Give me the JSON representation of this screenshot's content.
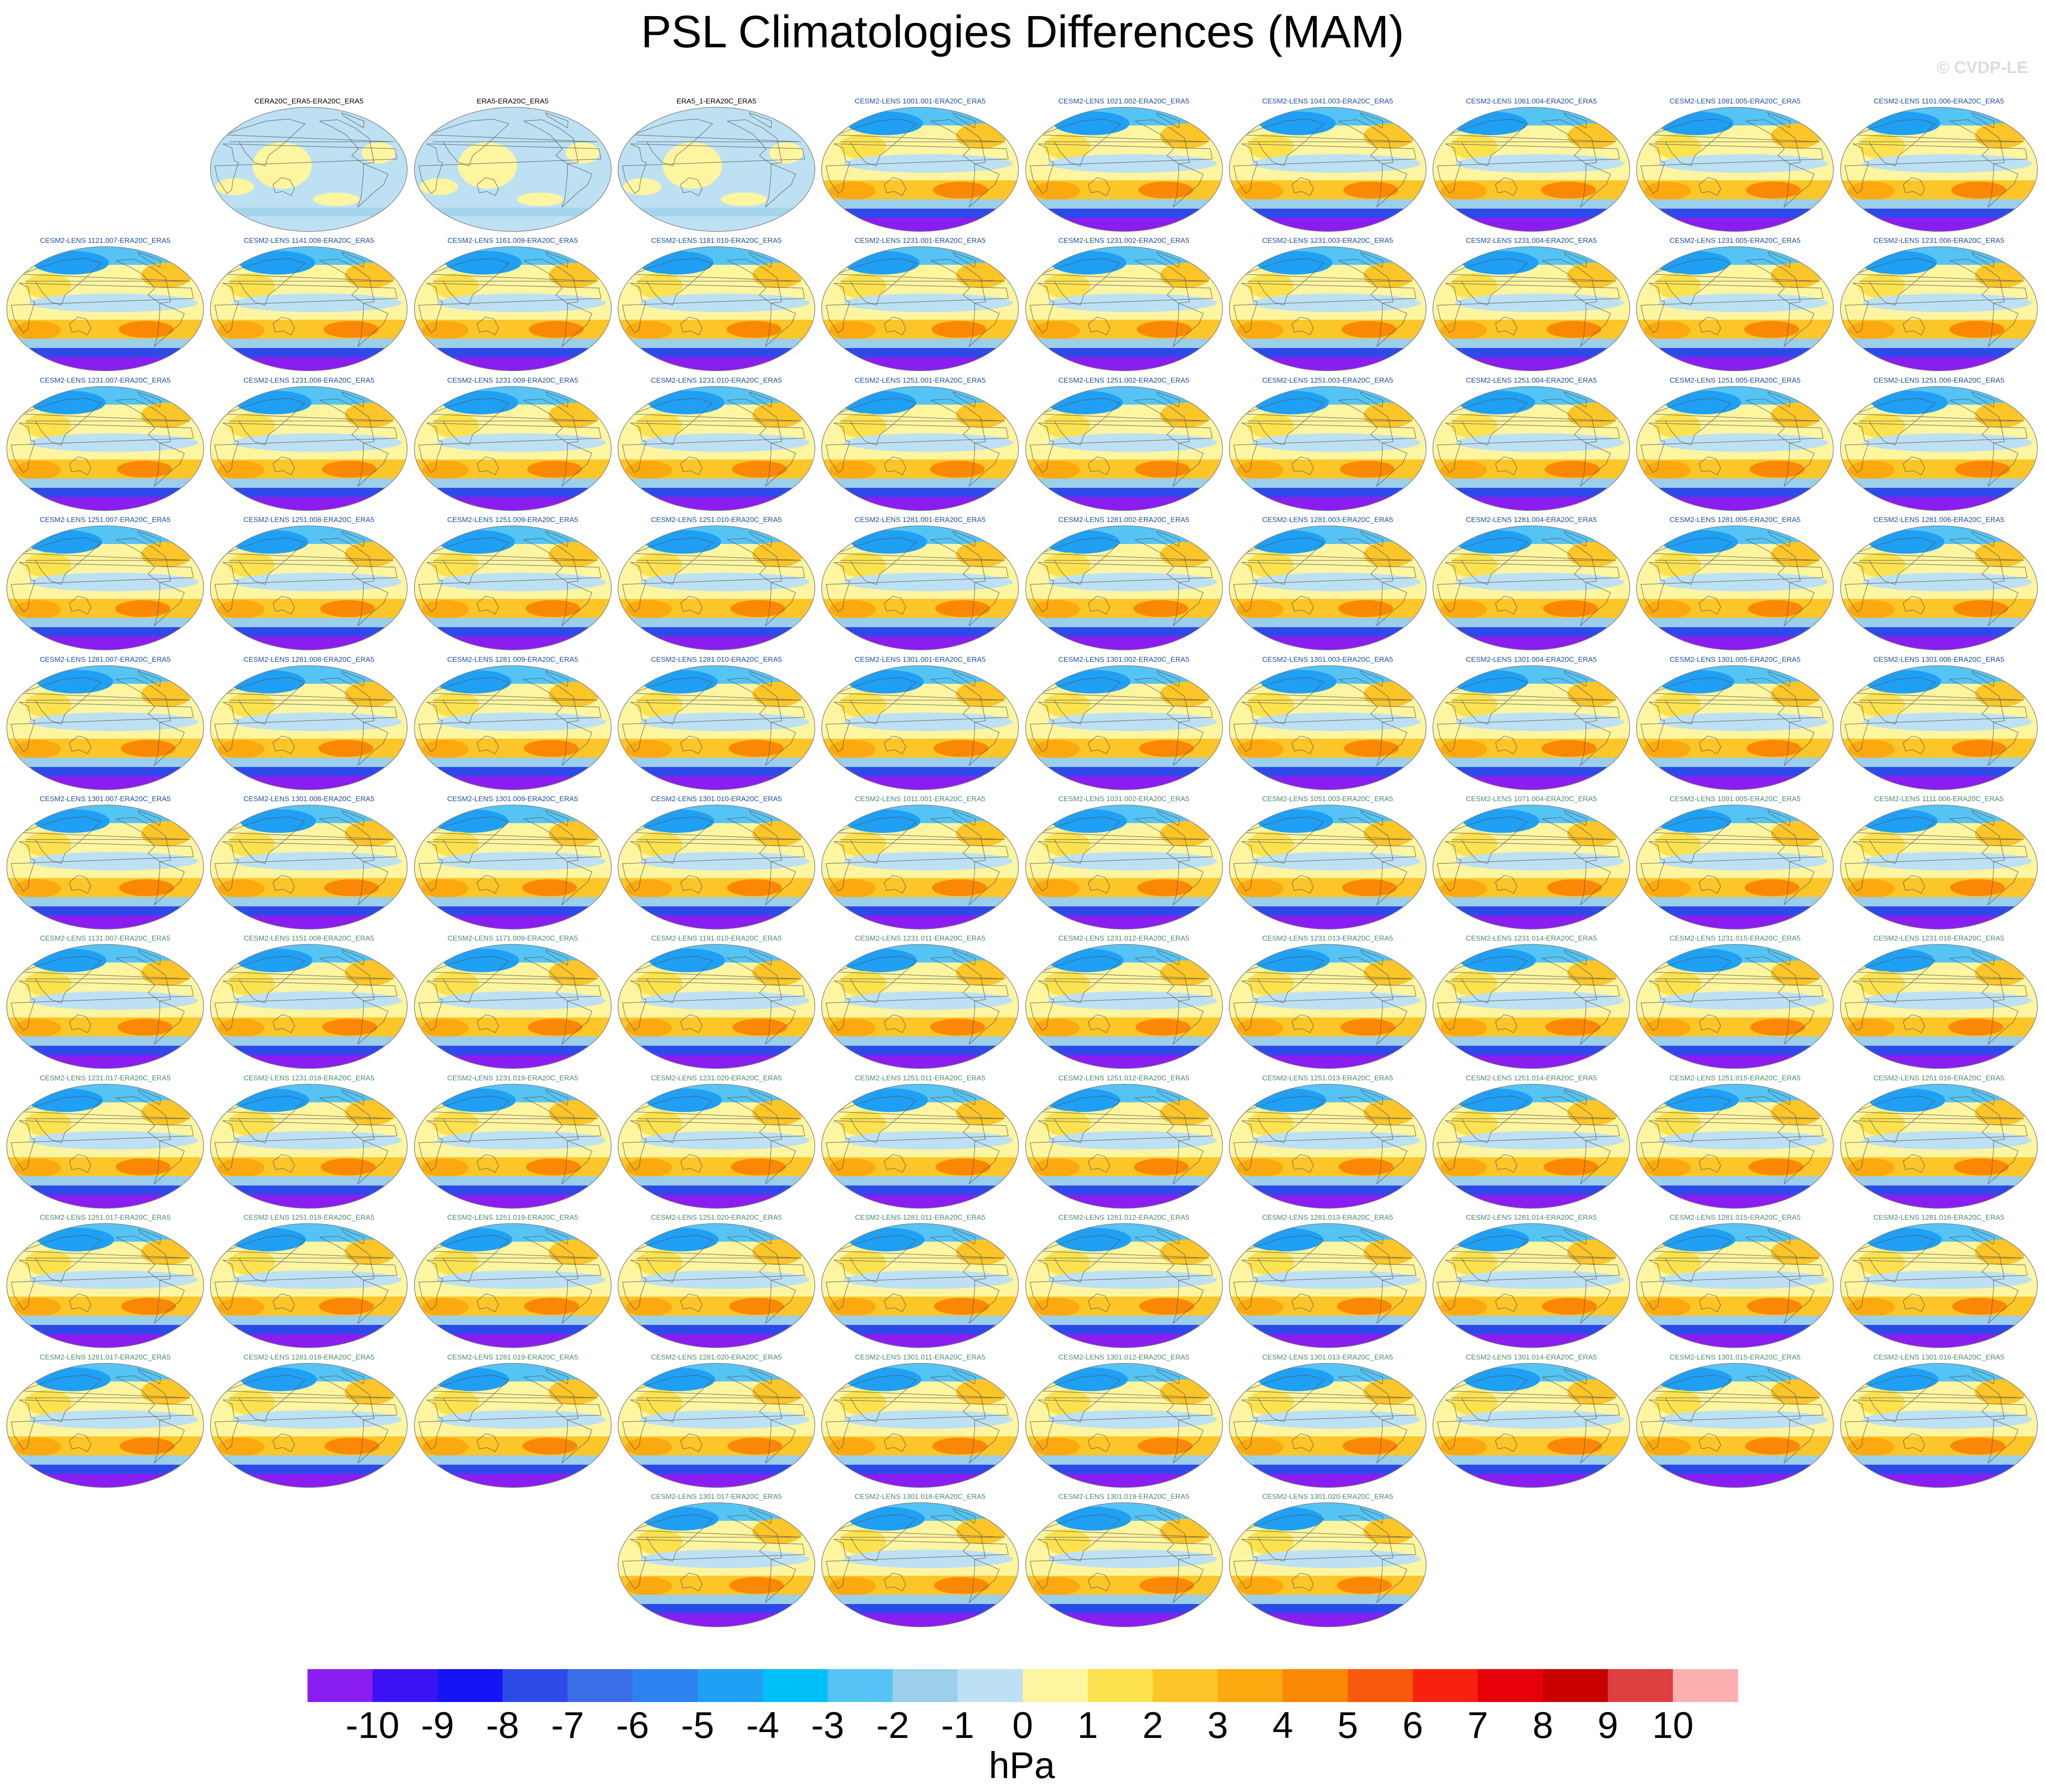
{
  "title": "PSL Climatologies Differences (MAM)",
  "watermark": "© CVDP-LE",
  "chart_data": {
    "type": "map-panel-grid",
    "projection": "Robinson (global, Pacific-centered)",
    "variable": "PSL",
    "season": "MAM",
    "units": "hPa",
    "colorbar": {
      "units_label": "hPa",
      "levels": [
        -10,
        -9,
        -8,
        -7,
        -6,
        -5,
        -4,
        -3,
        -2,
        -1,
        0,
        1,
        2,
        3,
        4,
        5,
        6,
        7,
        8,
        9,
        10
      ],
      "level_labels": [
        "-10",
        "-9",
        "-8",
        "-7",
        "-6",
        "-5",
        "-4",
        "-3",
        "-2",
        "-1",
        "0",
        "1",
        "2",
        "3",
        "4",
        "5",
        "6",
        "7",
        "8",
        "9",
        "10"
      ],
      "colors": [
        "#8a1ef0",
        "#3c12f5",
        "#1414f5",
        "#2d4ae8",
        "#3a6ee6",
        "#2d82f0",
        "#1fa0f5",
        "#00c0f7",
        "#55c4f4",
        "#9bcfea",
        "#bde1f3",
        "#fdf5a0",
        "#fde24f",
        "#fcc528",
        "#fba90f",
        "#fb8805",
        "#f85a0c",
        "#f82010",
        "#e6000a",
        "#c80000",
        "#dc4040",
        "#fcb0b0"
      ]
    },
    "panels": [
      {
        "title": "CERA20C_ERA5-ERA20C_ERA5",
        "style": "obs",
        "title_color": "#000000"
      },
      {
        "title": "ERA5-ERA20C_ERA5",
        "style": "obs",
        "title_color": "#000000"
      },
      {
        "title": "ERA5_1-ERA20C_ERA5",
        "style": "obs",
        "title_color": "#000000"
      },
      {
        "title": "CESM2-LENS 1001.001-ERA20C_ERA5",
        "style": "model",
        "title_color": "#1a4fa0"
      },
      {
        "title": "CESM2-LENS 1021.002-ERA20C_ERA5",
        "style": "model",
        "title_color": "#1a4fa0"
      },
      {
        "title": "CESM2-LENS 1041.003-ERA20C_ERA5",
        "style": "model",
        "title_color": "#1a4fa0"
      },
      {
        "title": "CESM2-LENS 1061.004-ERA20C_ERA5",
        "style": "model",
        "title_color": "#1a4fa0"
      },
      {
        "title": "CESM2-LENS 1081.005-ERA20C_ERA5",
        "style": "model",
        "title_color": "#1a4fa0"
      },
      {
        "title": "CESM2-LENS 1101.006-ERA20C_ERA5",
        "style": "model",
        "title_color": "#1a4fa0"
      },
      {
        "title": "CESM2-LENS 1121.007-ERA20C_ERA5",
        "style": "model",
        "title_color": "#1a4fa0"
      },
      {
        "title": "CESM2-LENS 1141.008-ERA20C_ERA5",
        "style": "model",
        "title_color": "#1a4fa0"
      },
      {
        "title": "CESM2-LENS 1161.009-ERA20C_ERA5",
        "style": "model",
        "title_color": "#1a4fa0"
      },
      {
        "title": "CESM2-LENS 1181.010-ERA20C_ERA5",
        "style": "model",
        "title_color": "#1a4fa0"
      },
      {
        "title": "CESM2-LENS 1231.001-ERA20C_ERA5",
        "style": "model",
        "title_color": "#1a4fa0"
      },
      {
        "title": "CESM2-LENS 1231.002-ERA20C_ERA5",
        "style": "model",
        "title_color": "#1a4fa0"
      },
      {
        "title": "CESM2-LENS 1231.003-ERA20C_ERA5",
        "style": "model",
        "title_color": "#1a4fa0"
      },
      {
        "title": "CESM2-LENS 1231.004-ERA20C_ERA5",
        "style": "model",
        "title_color": "#1a4fa0"
      },
      {
        "title": "CESM2-LENS 1231.005-ERA20C_ERA5",
        "style": "model",
        "title_color": "#1a4fa0"
      },
      {
        "title": "CESM2-LENS 1231.006-ERA20C_ERA5",
        "style": "model",
        "title_color": "#1a4fa0"
      },
      {
        "title": "CESM2-LENS 1231.007-ERA20C_ERA5",
        "style": "model",
        "title_color": "#1a4fa0"
      },
      {
        "title": "CESM2-LENS 1231.008-ERA20C_ERA5",
        "style": "model",
        "title_color": "#1a4fa0"
      },
      {
        "title": "CESM2-LENS 1231.009-ERA20C_ERA5",
        "style": "model",
        "title_color": "#1a4fa0"
      },
      {
        "title": "CESM2-LENS 1231.010-ERA20C_ERA5",
        "style": "model",
        "title_color": "#1a4fa0"
      },
      {
        "title": "CESM2-LENS 1251.001-ERA20C_ERA5",
        "style": "model",
        "title_color": "#1a4fa0"
      },
      {
        "title": "CESM2-LENS 1251.002-ERA20C_ERA5",
        "style": "model",
        "title_color": "#1a4fa0"
      },
      {
        "title": "CESM2-LENS 1251.003-ERA20C_ERA5",
        "style": "model",
        "title_color": "#1a4fa0"
      },
      {
        "title": "CESM2-LENS 1251.004-ERA20C_ERA5",
        "style": "model",
        "title_color": "#1a4fa0"
      },
      {
        "title": "CESM2-LENS 1251.005-ERA20C_ERA5",
        "style": "model",
        "title_color": "#1a4fa0"
      },
      {
        "title": "CESM2-LENS 1251.006-ERA20C_ERA5",
        "style": "model",
        "title_color": "#1a4fa0"
      },
      {
        "title": "CESM2-LENS 1251.007-ERA20C_ERA5",
        "style": "model",
        "title_color": "#1a4fa0"
      },
      {
        "title": "CESM2-LENS 1251.008-ERA20C_ERA5",
        "style": "model",
        "title_color": "#1a4fa0"
      },
      {
        "title": "CESM2-LENS 1251.009-ERA20C_ERA5",
        "style": "model",
        "title_color": "#1a4fa0"
      },
      {
        "title": "CESM2-LENS 1251.010-ERA20C_ERA5",
        "style": "model",
        "title_color": "#1a4fa0"
      },
      {
        "title": "CESM2-LENS 1281.001-ERA20C_ERA5",
        "style": "model",
        "title_color": "#1a4fa0"
      },
      {
        "title": "CESM2-LENS 1281.002-ERA20C_ERA5",
        "style": "model",
        "title_color": "#1a4fa0"
      },
      {
        "title": "CESM2-LENS 1281.003-ERA20C_ERA5",
        "style": "model",
        "title_color": "#1a4fa0"
      },
      {
        "title": "CESM2-LENS 1281.004-ERA20C_ERA5",
        "style": "model",
        "title_color": "#1a4fa0"
      },
      {
        "title": "CESM2-LENS 1281.005-ERA20C_ERA5",
        "style": "model",
        "title_color": "#1a4fa0"
      },
      {
        "title": "CESM2-LENS 1281.006-ERA20C_ERA5",
        "style": "model",
        "title_color": "#1a4fa0"
      },
      {
        "title": "CESM2-LENS 1281.007-ERA20C_ERA5",
        "style": "model",
        "title_color": "#1a4fa0"
      },
      {
        "title": "CESM2-LENS 1281.008-ERA20C_ERA5",
        "style": "model",
        "title_color": "#1a4fa0"
      },
      {
        "title": "CESM2-LENS 1281.009-ERA20C_ERA5",
        "style": "model",
        "title_color": "#1a4fa0"
      },
      {
        "title": "CESM2-LENS 1281.010-ERA20C_ERA5",
        "style": "model",
        "title_color": "#1a4fa0"
      },
      {
        "title": "CESM2-LENS 1301.001-ERA20C_ERA5",
        "style": "model",
        "title_color": "#1a4fa0"
      },
      {
        "title": "CESM2-LENS 1301.002-ERA20C_ERA5",
        "style": "model",
        "title_color": "#1a4fa0"
      },
      {
        "title": "CESM2-LENS 1301.003-ERA20C_ERA5",
        "style": "model",
        "title_color": "#1a4fa0"
      },
      {
        "title": "CESM2-LENS 1301.004-ERA20C_ERA5",
        "style": "model",
        "title_color": "#1a4fa0"
      },
      {
        "title": "CESM2-LENS 1301.005-ERA20C_ERA5",
        "style": "model",
        "title_color": "#1a4fa0"
      },
      {
        "title": "CESM2-LENS 1301.006-ERA20C_ERA5",
        "style": "model",
        "title_color": "#1a4fa0"
      },
      {
        "title": "CESM2-LENS 1301.007-ERA20C_ERA5",
        "style": "model",
        "title_color": "#1a4fa0"
      },
      {
        "title": "CESM2-LENS 1301.008-ERA20C_ERA5",
        "style": "model",
        "title_color": "#1a4fa0"
      },
      {
        "title": "CESM2-LENS 1301.009-ERA20C_ERA5",
        "style": "model",
        "title_color": "#1a4fa0"
      },
      {
        "title": "CESM2-LENS 1301.010-ERA20C_ERA5",
        "style": "model",
        "title_color": "#1a4fa0"
      },
      {
        "title": "CESM2-LENS 1011.001-ERA20C_ERA5",
        "style": "model",
        "title_color": "#4a8a6e"
      },
      {
        "title": "CESM2-LENS 1031.002-ERA20C_ERA5",
        "style": "model",
        "title_color": "#4a8a6e"
      },
      {
        "title": "CESM2-LENS 1051.003-ERA20C_ERA5",
        "style": "model",
        "title_color": "#4a8a6e"
      },
      {
        "title": "CESM2-LENS 1071.004-ERA20C_ERA5",
        "style": "model",
        "title_color": "#4a8a6e"
      },
      {
        "title": "CESM2-LENS 1091.005-ERA20C_ERA5",
        "style": "model",
        "title_color": "#4a8a6e"
      },
      {
        "title": "CESM2-LENS 1111.006-ERA20C_ERA5",
        "style": "model",
        "title_color": "#4a8a6e"
      },
      {
        "title": "CESM2-LENS 1131.007-ERA20C_ERA5",
        "style": "model",
        "title_color": "#4a8a6e"
      },
      {
        "title": "CESM2-LENS 1151.008-ERA20C_ERA5",
        "style": "model",
        "title_color": "#4a8a6e"
      },
      {
        "title": "CESM2-LENS 1171.009-ERA20C_ERA5",
        "style": "model",
        "title_color": "#4a8a6e"
      },
      {
        "title": "CESM2-LENS 1191.010-ERA20C_ERA5",
        "style": "model",
        "title_color": "#4a8a6e"
      },
      {
        "title": "CESM2-LENS 1231.011-ERA20C_ERA5",
        "style": "model",
        "title_color": "#4a8a6e"
      },
      {
        "title": "CESM2-LENS 1231.012-ERA20C_ERA5",
        "style": "model",
        "title_color": "#4a8a6e"
      },
      {
        "title": "CESM2-LENS 1231.013-ERA20C_ERA5",
        "style": "model",
        "title_color": "#4a8a6e"
      },
      {
        "title": "CESM2-LENS 1231.014-ERA20C_ERA5",
        "style": "model",
        "title_color": "#4a8a6e"
      },
      {
        "title": "CESM2-LENS 1231.015-ERA20C_ERA5",
        "style": "model",
        "title_color": "#4a8a6e"
      },
      {
        "title": "CESM2-LENS 1231.016-ERA20C_ERA5",
        "style": "model",
        "title_color": "#4a8a6e"
      },
      {
        "title": "CESM2-LENS 1231.017-ERA20C_ERA5",
        "style": "model",
        "title_color": "#4a8a6e"
      },
      {
        "title": "CESM2-LENS 1231.018-ERA20C_ERA5",
        "style": "model",
        "title_color": "#4a8a6e"
      },
      {
        "title": "CESM2-LENS 1231.019-ERA20C_ERA5",
        "style": "model",
        "title_color": "#4a8a6e"
      },
      {
        "title": "CESM2-LENS 1231.020-ERA20C_ERA5",
        "style": "model",
        "title_color": "#4a8a6e"
      },
      {
        "title": "CESM2-LENS 1251.011-ERA20C_ERA5",
        "style": "model",
        "title_color": "#4a8a6e"
      },
      {
        "title": "CESM2-LENS 1251.012-ERA20C_ERA5",
        "style": "model",
        "title_color": "#4a8a6e"
      },
      {
        "title": "CESM2-LENS 1251.013-ERA20C_ERA5",
        "style": "model",
        "title_color": "#4a8a6e"
      },
      {
        "title": "CESM2-LENS 1251.014-ERA20C_ERA5",
        "style": "model",
        "title_color": "#4a8a6e"
      },
      {
        "title": "CESM2-LENS 1251.015-ERA20C_ERA5",
        "style": "model",
        "title_color": "#4a8a6e"
      },
      {
        "title": "CESM2-LENS 1251.016-ERA20C_ERA5",
        "style": "model",
        "title_color": "#4a8a6e"
      },
      {
        "title": "CESM2-LENS 1251.017-ERA20C_ERA5",
        "style": "model",
        "title_color": "#4a8a6e"
      },
      {
        "title": "CESM2-LENS 1251.018-ERA20C_ERA5",
        "style": "model",
        "title_color": "#4a8a6e"
      },
      {
        "title": "CESM2-LENS 1251.019-ERA20C_ERA5",
        "style": "model",
        "title_color": "#4a8a6e"
      },
      {
        "title": "CESM2-LENS 1251.020-ERA20C_ERA5",
        "style": "model",
        "title_color": "#4a8a6e"
      },
      {
        "title": "CESM2-LENS 1281.011-ERA20C_ERA5",
        "style": "model",
        "title_color": "#4a8a6e"
      },
      {
        "title": "CESM2-LENS 1281.012-ERA20C_ERA5",
        "style": "model",
        "title_color": "#4a8a6e"
      },
      {
        "title": "CESM2-LENS 1281.013-ERA20C_ERA5",
        "style": "model",
        "title_color": "#4a8a6e"
      },
      {
        "title": "CESM2-LENS 1281.014-ERA20C_ERA5",
        "style": "model",
        "title_color": "#4a8a6e"
      },
      {
        "title": "CESM2-LENS 1281.015-ERA20C_ERA5",
        "style": "model",
        "title_color": "#4a8a6e"
      },
      {
        "title": "CESM2-LENS 1281.016-ERA20C_ERA5",
        "style": "model",
        "title_color": "#4a8a6e"
      },
      {
        "title": "CESM2-LENS 1281.017-ERA20C_ERA5",
        "style": "model",
        "title_color": "#4a8a6e"
      },
      {
        "title": "CESM2-LENS 1281.018-ERA20C_ERA5",
        "style": "model",
        "title_color": "#4a8a6e"
      },
      {
        "title": "CESM2-LENS 1281.019-ERA20C_ERA5",
        "style": "model",
        "title_color": "#4a8a6e"
      },
      {
        "title": "CESM2-LENS 1281.020-ERA20C_ERA5",
        "style": "model",
        "title_color": "#4a8a6e"
      },
      {
        "title": "CESM2-LENS 1301.011-ERA20C_ERA5",
        "style": "model",
        "title_color": "#4a8a6e"
      },
      {
        "title": "CESM2-LENS 1301.012-ERA20C_ERA5",
        "style": "model",
        "title_color": "#4a8a6e"
      },
      {
        "title": "CESM2-LENS 1301.013-ERA20C_ERA5",
        "style": "model",
        "title_color": "#4a8a6e"
      },
      {
        "title": "CESM2-LENS 1301.014-ERA20C_ERA5",
        "style": "model",
        "title_color": "#4a8a6e"
      },
      {
        "title": "CESM2-LENS 1301.015-ERA20C_ERA5",
        "style": "model",
        "title_color": "#4a8a6e"
      },
      {
        "title": "CESM2-LENS 1301.016-ERA20C_ERA5",
        "style": "model",
        "title_color": "#4a8a6e"
      },
      {
        "title": "CESM2-LENS 1301.017-ERA20C_ERA5",
        "style": "model",
        "title_color": "#4a8a6e"
      },
      {
        "title": "CESM2-LENS 1301.018-ERA20C_ERA5",
        "style": "model",
        "title_color": "#4a8a6e"
      },
      {
        "title": "CESM2-LENS 1301.019-ERA20C_ERA5",
        "style": "model",
        "title_color": "#4a8a6e"
      },
      {
        "title": "CESM2-LENS 1301.020-ERA20C_ERA5",
        "style": "model",
        "title_color": "#4a8a6e"
      }
    ]
  }
}
